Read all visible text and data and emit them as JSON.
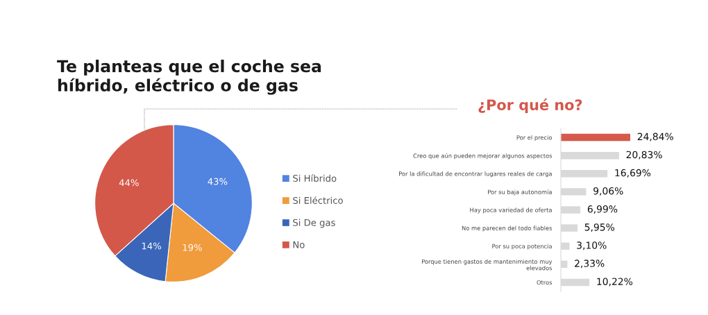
{
  "chart_data": [
    {
      "type": "pie",
      "title": "Te planteas que el coche sea\nhíbrido, eléctrico o de gas",
      "categories": [
        "Si Híbrido",
        "Si Eléctrico",
        "Si De gas",
        "No"
      ],
      "values": [
        43,
        19,
        14,
        44
      ],
      "colors": [
        "#5183e0",
        "#f09b3c",
        "#3a65b8",
        "#d35849"
      ],
      "value_labels": [
        "43%",
        "19%",
        "14%",
        "44%"
      ],
      "legend": "right"
    },
    {
      "type": "bar",
      "orientation": "horizontal",
      "title": "¿Por qué no?",
      "categories": [
        "Por el precio",
        "Creo que aún pueden mejorar algunos aspectos",
        "Por la dificultad de encontrar lugares reales de carga",
        "Por su baja autonomía",
        "Hay poca variedad de oferta",
        "No me parecen del todo fiables",
        "Por su poca potencia",
        "Porque tienen gastos de mantenimiento muy\nelevados",
        "Otros"
      ],
      "values": [
        24.84,
        20.83,
        16.69,
        9.06,
        6.99,
        5.95,
        3.1,
        2.33,
        10.22
      ],
      "colors": [
        "#d65a4c",
        "#d9d9d9",
        "#d9d9d9",
        "#d9d9d9",
        "#d9d9d9",
        "#d9d9d9",
        "#d9d9d9",
        "#d9d9d9",
        "#d9d9d9"
      ],
      "value_labels": [
        "24,84%",
        "20,83%",
        "16,69%",
        "9,06%",
        "6,99%",
        "5,95%",
        "3,10%",
        "2,33%",
        "10,22%"
      ],
      "tick_labels": "y"
    }
  ]
}
